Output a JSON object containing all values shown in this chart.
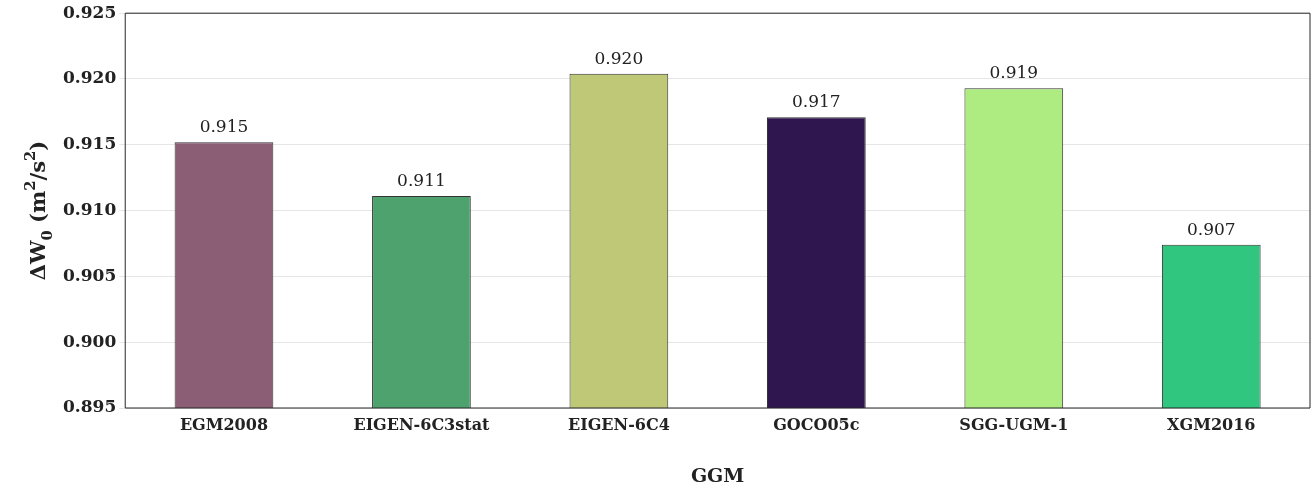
{
  "chart_data": {
    "type": "bar",
    "xlabel": "GGM",
    "ylabel": "ΔW$_{0}$ (m$^{2}$/s$^{2}$)",
    "categories": [
      "EGM2008",
      "EIGEN-6C3stat",
      "EIGEN-6C4",
      "GOCO05c",
      "SGG-UGM-1",
      "XGM2016"
    ],
    "values": [
      0.9152,
      0.9111,
      0.9204,
      0.9171,
      0.9193,
      0.9074
    ],
    "colors": [
      "#8b5e76",
      "#4ea26e",
      "#bfc876",
      "#30164e",
      "#aeeb80",
      "#30c67f"
    ],
    "value_labels": [
      "0.915",
      "0.911",
      "0.920",
      "0.917",
      "0.919",
      "0.907"
    ],
    "ylim": [
      0.895,
      0.925
    ],
    "yticks": [
      0.895,
      {
        "value": 0.9,
        "label": "0.900"
      },
      0.905,
      {
        "value": 0.91,
        "label": "0.910"
      },
      0.915,
      {
        "value": 0.92,
        "label": "0.920"
      },
      0.925
    ],
    "grid": "y",
    "legend": false
  }
}
